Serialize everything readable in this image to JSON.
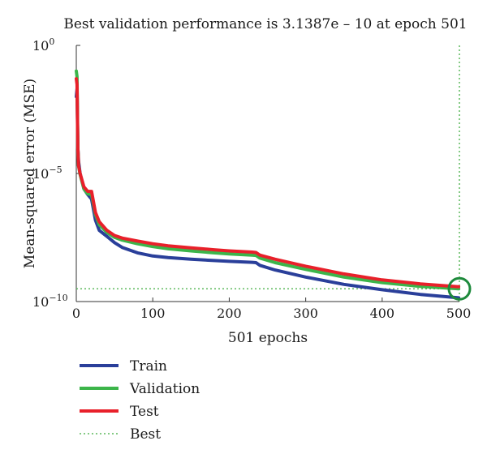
{
  "chart_data": {
    "type": "line",
    "title": "Best validation performance is 3.1387e – 10 at epoch 501",
    "xlabel": "501 epochs",
    "ylabel": "Mean-squared error (MSE)",
    "xlim": [
      0,
      501
    ],
    "ylim": [
      1e-10,
      1
    ],
    "yscale": "log",
    "x_ticks": [
      0,
      100,
      200,
      300,
      400,
      500
    ],
    "x_tick_labels": [
      "0",
      "100",
      "200",
      "300",
      "400",
      "500"
    ],
    "y_ticks": [
      {
        "value": 1,
        "base": "10",
        "exp": "0"
      },
      {
        "value": 1e-05,
        "base": "10",
        "exp": "−5"
      },
      {
        "value": 1e-10,
        "base": "10",
        "exp": "−10"
      }
    ],
    "grid": false,
    "legend_position": "bottom-left",
    "series": [
      {
        "name": "Train",
        "color": "#2a3f9a",
        "x": [
          0,
          1,
          2,
          3,
          5,
          10,
          15,
          20,
          25,
          30,
          40,
          50,
          60,
          80,
          100,
          120,
          150,
          180,
          200,
          230,
          235,
          240,
          260,
          300,
          350,
          400,
          450,
          500
        ],
        "y": [
          0.01,
          0.02,
          0.0001,
          3e-05,
          1e-05,
          2.5e-06,
          1.5e-06,
          1e-06,
          1.5e-07,
          6e-08,
          3.5e-08,
          2e-08,
          1.3e-08,
          8e-09,
          6e-09,
          5.2e-09,
          4.5e-09,
          4e-09,
          3.7e-09,
          3.4e-09,
          3.3e-09,
          2.6e-09,
          1.7e-09,
          9e-10,
          4.7e-10,
          2.9e-10,
          1.9e-10,
          1.4e-10
        ]
      },
      {
        "name": "Validation",
        "color": "#3cb54a",
        "x": [
          0,
          1,
          2,
          3,
          5,
          10,
          15,
          20,
          25,
          30,
          40,
          50,
          60,
          80,
          100,
          120,
          150,
          180,
          200,
          230,
          235,
          240,
          260,
          300,
          350,
          400,
          450,
          500
        ],
        "y": [
          0.1,
          0.06,
          0.0001,
          2e-05,
          9e-06,
          2.5e-06,
          1.6e-06,
          1.5e-06,
          2.5e-07,
          1e-07,
          5e-08,
          3.2e-08,
          2.5e-08,
          1.8e-08,
          1.4e-08,
          1.15e-08,
          9.5e-09,
          8e-09,
          7.2e-09,
          6.5e-09,
          6.3e-09,
          5e-09,
          3.3e-09,
          1.8e-09,
          9e-10,
          5.5e-10,
          3.9e-10,
          3.14e-10
        ]
      },
      {
        "name": "Test",
        "color": "#e8202a",
        "x": [
          0,
          1,
          2,
          3,
          5,
          10,
          15,
          20,
          25,
          30,
          40,
          50,
          60,
          80,
          100,
          120,
          150,
          180,
          200,
          230,
          235,
          240,
          260,
          300,
          350,
          400,
          450,
          500
        ],
        "y": [
          0.05,
          0.03,
          0.0001,
          2e-05,
          1e-05,
          3e-06,
          2e-06,
          2e-06,
          3e-07,
          1.3e-07,
          6e-08,
          3.8e-08,
          3e-08,
          2.3e-08,
          1.8e-08,
          1.5e-08,
          1.25e-08,
          1.05e-08,
          9.5e-09,
          8.5e-09,
          8.2e-09,
          6.5e-09,
          4.5e-09,
          2.4e-09,
          1.2e-09,
          7e-10,
          4.9e-10,
          3.8e-10
        ]
      }
    ],
    "best": {
      "name": "Best",
      "color": "#5cb85c",
      "epoch": 501,
      "value": 3.1387e-10
    }
  }
}
